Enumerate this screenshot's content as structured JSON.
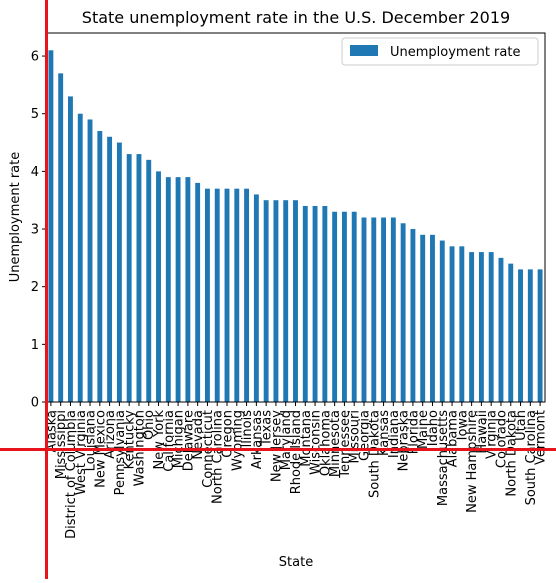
{
  "chart_data": {
    "type": "bar",
    "title": "State unemployment rate in the U.S. December 2019",
    "xlabel": "State",
    "ylabel": "Unemployment rate",
    "ylim": [
      0,
      6.4
    ],
    "yticks": [
      0,
      1,
      2,
      3,
      4,
      5,
      6
    ],
    "legend": {
      "placement": "top-right"
    },
    "grid": false,
    "series": [
      {
        "name": "Unemployment rate",
        "color": "#1f77b4",
        "values": [
          6.1,
          5.7,
          5.3,
          5.0,
          4.9,
          4.7,
          4.6,
          4.5,
          4.3,
          4.3,
          4.2,
          4.0,
          3.9,
          3.9,
          3.9,
          3.8,
          3.7,
          3.7,
          3.7,
          3.7,
          3.7,
          3.6,
          3.5,
          3.5,
          3.5,
          3.5,
          3.4,
          3.4,
          3.4,
          3.3,
          3.3,
          3.3,
          3.2,
          3.2,
          3.2,
          3.2,
          3.1,
          3.0,
          2.9,
          2.9,
          2.8,
          2.7,
          2.7,
          2.6,
          2.6,
          2.6,
          2.5,
          2.4,
          2.3,
          2.3,
          2.3
        ]
      }
    ],
    "categories": [
      "Alaska",
      "Mississippi",
      "District of Columbia",
      "West Virginia",
      "Louisiana",
      "New Mexico",
      "Arizona",
      "Pennsylvania",
      "Kentucky",
      "Washington",
      "Ohio",
      "New York",
      "California",
      "Michigan",
      "Delaware",
      "Nevada",
      "Connecticut",
      "North Carolina",
      "Oregon",
      "Wyoming",
      "Illinois",
      "Arkansas",
      "Texas",
      "New Jersey",
      "Maryland",
      "Rhode Island",
      "Montana",
      "Wisconsin",
      "Oklahoma",
      "Minnesota",
      "Tennessee",
      "Missouri",
      "Georgia",
      "South Dakota",
      "Kansas",
      "Indiana",
      "Nebraska",
      "Florida",
      "Maine",
      "Idaho",
      "Massachusetts",
      "Alabama",
      "Iowa",
      "New Hampshire",
      "Hawaii",
      "Virginia",
      "Colorado",
      "North Dakota",
      "Utah",
      "South Carolina",
      "Vermont"
    ]
  },
  "overlay": {
    "line_color": "#e8141c"
  }
}
